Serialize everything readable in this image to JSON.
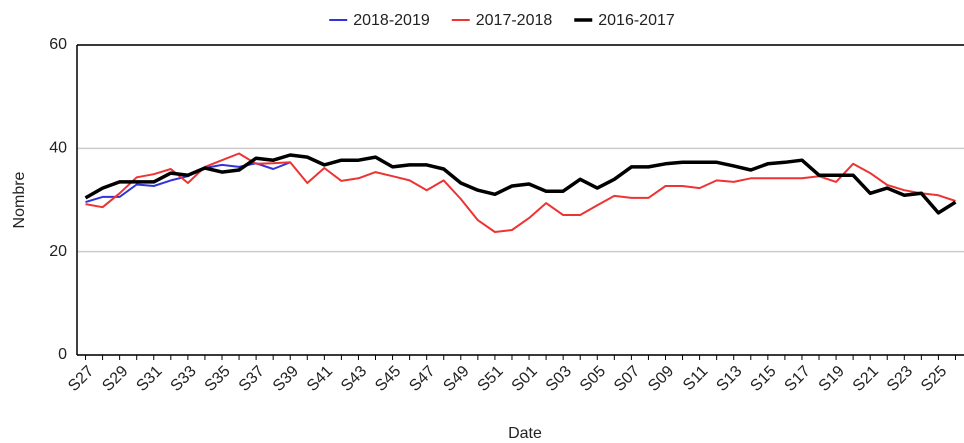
{
  "chart_data": {
    "type": "line",
    "x_label": "Date",
    "y_label": "Nombre",
    "categories": [
      "S27",
      null,
      "S29",
      null,
      "S31",
      null,
      "S33",
      null,
      "S35",
      null,
      "S37",
      null,
      "S39",
      null,
      "S41",
      null,
      "S43",
      null,
      "S45",
      null,
      "S47",
      null,
      "S49",
      null,
      "S51",
      null,
      "S01",
      null,
      "S03",
      null,
      "S05",
      null,
      "S07",
      null,
      "S09",
      null,
      "S11",
      null,
      "S13",
      null,
      "S15",
      null,
      "S17",
      null,
      "S19",
      null,
      "S21",
      null,
      "S23",
      null,
      "S25",
      null
    ],
    "ylim": [
      0,
      60
    ],
    "yticks": [
      0,
      20,
      40,
      60
    ],
    "grid": true,
    "legend": "top",
    "series": [
      {
        "name": "2018-2019",
        "color": "#3333dd",
        "width": 2,
        "values": [
          29.6,
          30.6,
          30.6,
          33,
          32.7,
          33.8,
          34.6,
          36.2,
          36.8,
          36.4,
          37.1,
          36,
          37.3,
          null,
          null,
          null,
          null,
          null,
          null,
          null,
          null,
          null,
          null,
          null,
          null,
          null,
          null,
          null,
          null,
          null,
          null,
          null,
          null,
          null,
          null,
          null,
          null,
          null,
          null,
          null,
          null,
          null,
          null,
          null,
          null,
          null,
          null,
          null,
          null,
          null,
          null,
          null
        ]
      },
      {
        "name": "2017-2018",
        "color": "#ee3333",
        "width": 2,
        "values": [
          29.2,
          28.6,
          31.3,
          34.4,
          35,
          36,
          33.3,
          36.4,
          37.7,
          39,
          37,
          37.1,
          37.3,
          33.3,
          36.2,
          33.7,
          34.2,
          35.4,
          34.6,
          33.8,
          31.9,
          33.8,
          30.2,
          26.1,
          23.8,
          24.2,
          26.5,
          29.4,
          27.1,
          27.1,
          29,
          30.8,
          30.4,
          30.4,
          32.7,
          32.7,
          32.3,
          33.8,
          33.5,
          34.2,
          34.2,
          34.2,
          34.2,
          34.6,
          33.5,
          37,
          35.2,
          32.9,
          31.9,
          31.3,
          30.9,
          29.8
        ]
      },
      {
        "name": "2016-2017",
        "color": "#000000",
        "width": 3.5,
        "values": [
          30.4,
          32.3,
          33.5,
          33.5,
          33.5,
          35.2,
          34.8,
          36.2,
          35.4,
          35.8,
          38.1,
          37.7,
          38.7,
          38.3,
          36.8,
          37.7,
          37.7,
          38.3,
          36.4,
          36.8,
          36.8,
          36,
          33.3,
          31.9,
          31.1,
          32.7,
          33.1,
          31.7,
          31.7,
          34,
          32.3,
          34,
          36.4,
          36.4,
          37,
          37.3,
          37.3,
          37.3,
          36.6,
          35.8,
          37,
          37.3,
          37.7,
          34.8,
          34.8,
          34.8,
          31.3,
          32.3,
          30.9,
          31.3,
          27.5,
          29.6
        ]
      }
    ]
  }
}
